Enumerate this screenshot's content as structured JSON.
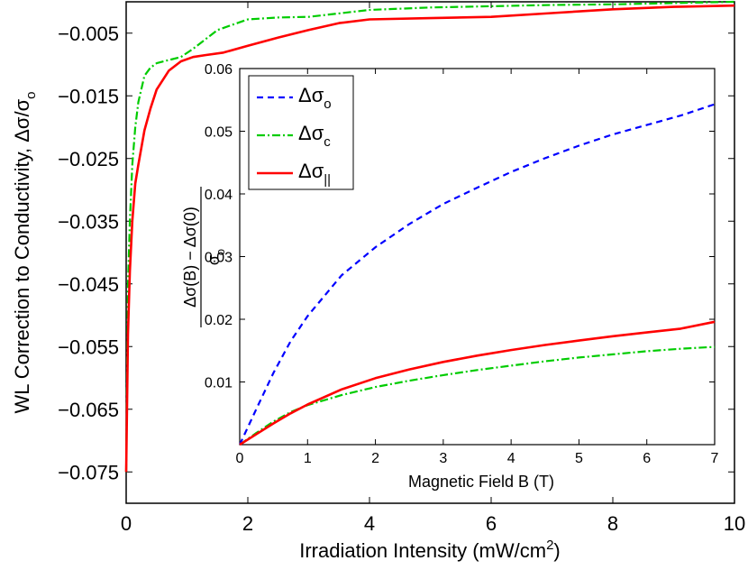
{
  "chart_data": [
    {
      "type": "line",
      "xlabel": "Irradiation Intensity (mW/cm²)",
      "xlabel_parts": [
        "Irradiation Intensity (mW/cm",
        "2",
        ")"
      ],
      "ylabel": "WL Correction to Conductivity, Δσ/σo",
      "ylabel_parts": [
        "WL Correction to Conductivity, Δσ/σ",
        "o"
      ],
      "xlim": [
        0,
        10
      ],
      "ylim": [
        -0.08,
        0.0
      ],
      "xticks": [
        0,
        2,
        4,
        6,
        8,
        10
      ],
      "xtick_labels": [
        "0",
        "2",
        "4",
        "6",
        "8",
        "10"
      ],
      "yticks": [
        -0.075,
        -0.065,
        -0.055,
        -0.045,
        -0.035,
        -0.025,
        -0.015,
        -0.005
      ],
      "ytick_labels": [
        "−0.075",
        "−0.065",
        "−0.055",
        "−0.045",
        "−0.035",
        "−0.025",
        "−0.015",
        "−0.005"
      ],
      "grid": false,
      "series": [
        {
          "key": "green",
          "color": "#00cc00",
          "style": "dashdot",
          "x": [
            0.0,
            0.03,
            0.06,
            0.1,
            0.15,
            0.2,
            0.3,
            0.4,
            0.5,
            0.7,
            0.9,
            1.1,
            1.5,
            2.0,
            2.5,
            3.0,
            4.0,
            5.0,
            6.0,
            7.0,
            8.0,
            9.0,
            10.0
          ],
          "y": [
            -0.075,
            -0.045,
            -0.035,
            -0.026,
            -0.02,
            -0.016,
            -0.0118,
            -0.0105,
            -0.0098,
            -0.0093,
            -0.0088,
            -0.0075,
            -0.0045,
            -0.0028,
            -0.0025,
            -0.0024,
            -0.0013,
            -0.0009,
            -0.0007,
            -0.0005,
            -0.0004,
            -0.0002,
            0.0
          ]
        },
        {
          "key": "red",
          "color": "#ff0000",
          "style": "solid",
          "x": [
            0.0,
            0.03,
            0.06,
            0.1,
            0.15,
            0.2,
            0.3,
            0.4,
            0.5,
            0.7,
            0.9,
            1.1,
            1.3,
            1.6,
            2.0,
            2.5,
            3.0,
            3.5,
            4.0,
            5.0,
            6.0,
            7.0,
            8.0,
            9.0,
            10.0
          ],
          "y": [
            -0.075,
            -0.053,
            -0.043,
            -0.035,
            -0.029,
            -0.026,
            -0.0205,
            -0.017,
            -0.014,
            -0.011,
            -0.0095,
            -0.0088,
            -0.0085,
            -0.0081,
            -0.007,
            -0.0057,
            -0.0045,
            -0.0034,
            -0.0028,
            -0.0026,
            -0.0024,
            -0.0018,
            -0.0012,
            -0.0008,
            -0.0006
          ]
        }
      ]
    },
    {
      "type": "line",
      "xlabel": "Magnetic Field B (T)",
      "ylabel": "(Δσ(B) − Δσ(0)) / σo",
      "ylabel_numerator": "Δσ(B) − Δσ(0)",
      "ylabel_denominator_parts": [
        "σ",
        "o"
      ],
      "xlim": [
        0,
        7
      ],
      "ylim": [
        0,
        0.06
      ],
      "xticks": [
        0,
        1,
        2,
        3,
        4,
        5,
        6,
        7
      ],
      "xtick_labels": [
        "0",
        "1",
        "2",
        "3",
        "4",
        "5",
        "6",
        "7"
      ],
      "yticks": [
        0.01,
        0.02,
        0.03,
        0.04,
        0.05,
        0.06
      ],
      "ytick_labels": [
        "0.01",
        "0.02",
        "0.03",
        "0.04",
        "0.05",
        "0.06"
      ],
      "grid": false,
      "legend": {
        "position": "top-left",
        "entries": [
          {
            "base": "Δσ",
            "sub": "o",
            "color": "#0000ff",
            "style": "dashed"
          },
          {
            "base": "Δσ",
            "sub": "c",
            "color": "#00cc00",
            "style": "dashdot"
          },
          {
            "base": "Δσ",
            "sub": "||",
            "color": "#ff0000",
            "style": "solid"
          }
        ]
      },
      "series": [
        {
          "key": "blue",
          "color": "#0000ff",
          "style": "dashed",
          "x": [
            0.0,
            0.25,
            0.5,
            0.75,
            1.0,
            1.5,
            2.0,
            2.5,
            3.0,
            3.5,
            4.0,
            4.5,
            5.0,
            5.5,
            6.0,
            6.5,
            7.0
          ],
          "y": [
            0.0,
            0.0058,
            0.0115,
            0.0165,
            0.0205,
            0.027,
            0.0315,
            0.0352,
            0.0384,
            0.041,
            0.0435,
            0.0457,
            0.0477,
            0.0495,
            0.051,
            0.0525,
            0.0543
          ]
        },
        {
          "key": "green",
          "color": "#00cc00",
          "style": "dashdot",
          "x": [
            0.0,
            0.25,
            0.5,
            0.75,
            1.0,
            1.5,
            2.0,
            2.5,
            3.0,
            3.5,
            4.0,
            4.5,
            5.0,
            5.5,
            6.0,
            6.5,
            7.0
          ],
          "y": [
            0.0,
            0.0019,
            0.0037,
            0.0052,
            0.0063,
            0.0079,
            0.0092,
            0.0102,
            0.0111,
            0.0119,
            0.0126,
            0.0133,
            0.0139,
            0.0144,
            0.0149,
            0.0153,
            0.0156
          ]
        },
        {
          "key": "red",
          "color": "#ff0000",
          "style": "solid",
          "x": [
            0.0,
            0.25,
            0.5,
            0.75,
            1.0,
            1.5,
            2.0,
            2.5,
            3.0,
            3.5,
            4.0,
            4.5,
            5.0,
            5.5,
            6.0,
            6.5,
            7.0
          ],
          "y": [
            0.0,
            0.0017,
            0.0034,
            0.005,
            0.0064,
            0.0088,
            0.0106,
            0.012,
            0.0132,
            0.0142,
            0.0151,
            0.0159,
            0.0166,
            0.0173,
            0.0179,
            0.0185,
            0.0196
          ]
        }
      ]
    }
  ]
}
